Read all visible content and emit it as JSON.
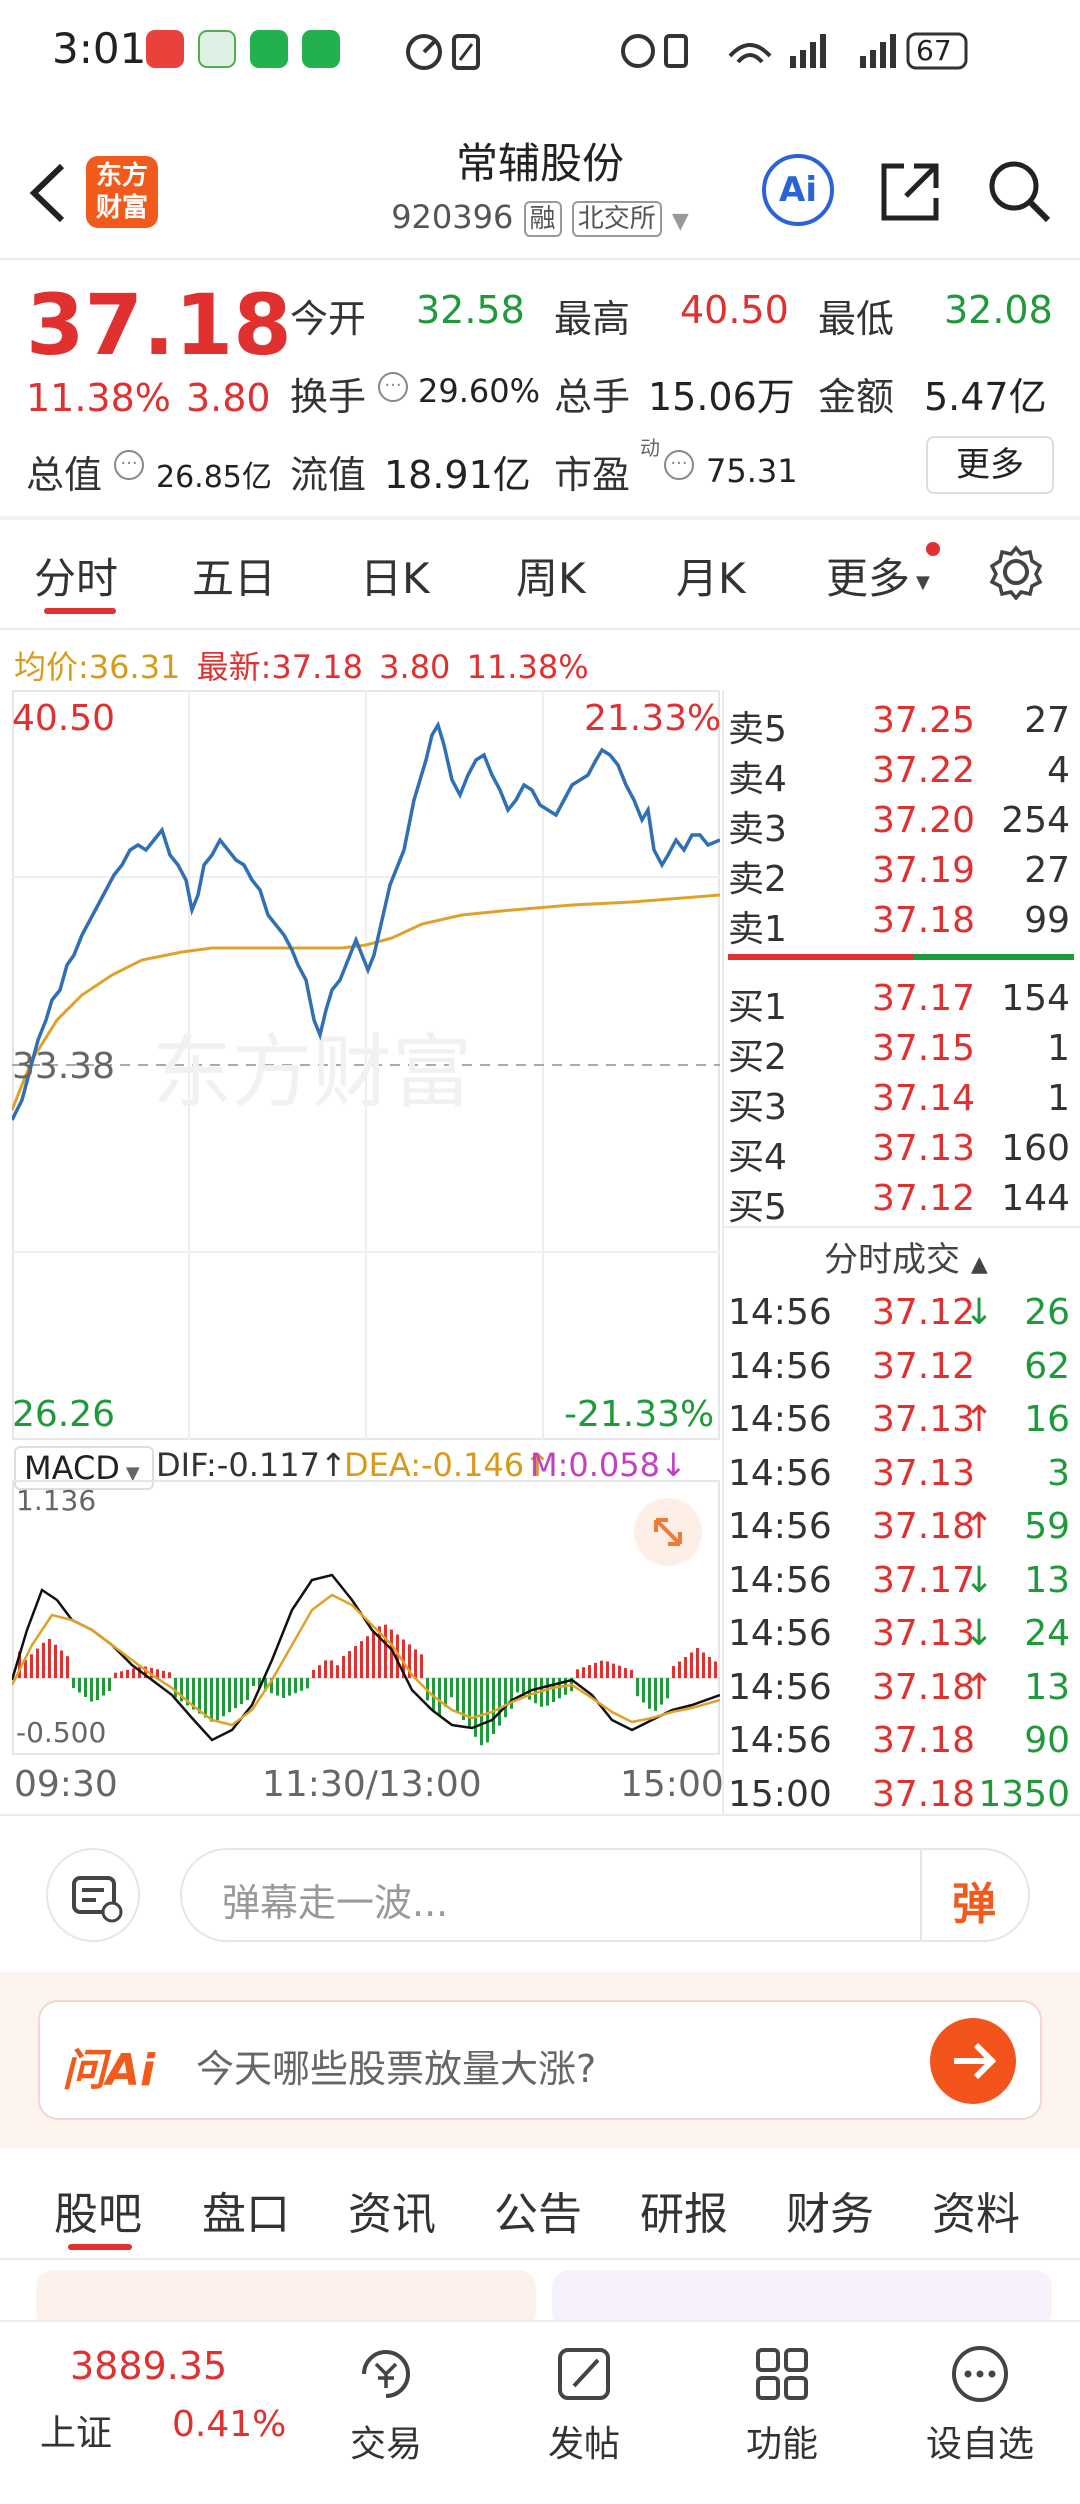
{
  "status_bar": {
    "time": "3:01",
    "battery": "67"
  },
  "header": {
    "logo_text": "东方财富",
    "title": "常辅股份",
    "code": "920396",
    "tag_margin": "融",
    "exchange": "北交所",
    "ai_label": "Ai"
  },
  "quote": {
    "price": "37.18",
    "change_pct": "11.38%",
    "change": "3.80",
    "open_label": "今开",
    "open": "32.58",
    "high_label": "最高",
    "high": "40.50",
    "low_label": "最低",
    "low": "32.08",
    "turnover_label": "换手",
    "turnover": "29.60%",
    "volume_label": "总手",
    "volume": "15.06万",
    "amount_label": "金额",
    "amount": "5.47亿",
    "mcap_label": "总值",
    "mcap": "26.85亿",
    "float_label": "流值",
    "float_value": "18.91亿",
    "pe_label": "市盈",
    "pe_sup": "动",
    "pe": "75.31",
    "more_button": "更多"
  },
  "tabs": [
    "分时",
    "五日",
    "日K",
    "周K",
    "月K",
    "更多"
  ],
  "info_line": {
    "avg_label": "均价:",
    "avg": "36.31",
    "latest_label": "最新:",
    "latest": "37.18",
    "change": "3.80",
    "change_pct": "11.38%"
  },
  "chart": {
    "top_price": "40.50",
    "top_pct": "21.33%",
    "mid_price": "33.38",
    "bottom_price": "26.26",
    "bottom_pct": "-21.33%",
    "watermark": "东方财富",
    "x_start": "09:30",
    "x_mid": "11:30/13:00",
    "x_end": "15:00"
  },
  "macd": {
    "selector": "MACD",
    "dif": "DIF:-0.117",
    "dea": "DEA:-0.146",
    "m": "M:0.058",
    "top": "1.136",
    "bottom": "-0.500"
  },
  "order_book": {
    "sells": [
      {
        "label": "卖5",
        "price": "37.25",
        "vol": "27"
      },
      {
        "label": "卖4",
        "price": "37.22",
        "vol": "4"
      },
      {
        "label": "卖3",
        "price": "37.20",
        "vol": "254"
      },
      {
        "label": "卖2",
        "price": "37.19",
        "vol": "27"
      },
      {
        "label": "卖1",
        "price": "37.18",
        "vol": "99"
      }
    ],
    "buys": [
      {
        "label": "买1",
        "price": "37.17",
        "vol": "154"
      },
      {
        "label": "买2",
        "price": "37.15",
        "vol": "1"
      },
      {
        "label": "买3",
        "price": "37.14",
        "vol": "1"
      },
      {
        "label": "买4",
        "price": "37.13",
        "vol": "160"
      },
      {
        "label": "买5",
        "price": "37.12",
        "vol": "144"
      }
    ]
  },
  "trades": {
    "title": "分时成交",
    "rows": [
      {
        "time": "14:56",
        "price": "37.12",
        "dir": "down",
        "vol": "26"
      },
      {
        "time": "14:56",
        "price": "37.12",
        "dir": "",
        "vol": "62"
      },
      {
        "time": "14:56",
        "price": "37.13",
        "dir": "up",
        "vol": "16"
      },
      {
        "time": "14:56",
        "price": "37.13",
        "dir": "",
        "vol": "3"
      },
      {
        "time": "14:56",
        "price": "37.18",
        "dir": "up",
        "vol": "59"
      },
      {
        "time": "14:56",
        "price": "37.17",
        "dir": "down",
        "vol": "13"
      },
      {
        "time": "14:56",
        "price": "37.13",
        "dir": "down",
        "vol": "24"
      },
      {
        "time": "14:56",
        "price": "37.18",
        "dir": "up",
        "vol": "13"
      },
      {
        "time": "14:56",
        "price": "37.18",
        "dir": "",
        "vol": "90"
      },
      {
        "time": "15:00",
        "price": "37.18",
        "dir": "",
        "vol": "1350"
      }
    ]
  },
  "danmu": {
    "placeholder": "弹幕走一波...",
    "button": "弹"
  },
  "ask_ai": {
    "brand": "问Ai",
    "prompt": "今天哪些股票放量大涨?"
  },
  "bottom_tabs": [
    "股吧",
    "盘口",
    "资讯",
    "公告",
    "研报",
    "财务",
    "资料"
  ],
  "bottom_bar": {
    "index_value": "3889.35",
    "index_name": "上证",
    "index_pct": "0.41%",
    "items": [
      "交易",
      "发帖",
      "功能",
      "设自选"
    ]
  },
  "colors": {
    "up": "#e0302f",
    "down": "#1f9a3a",
    "accent": "#f25a1c",
    "avg_line": "#e0a12a",
    "price_line": "#2f6fb5"
  }
}
